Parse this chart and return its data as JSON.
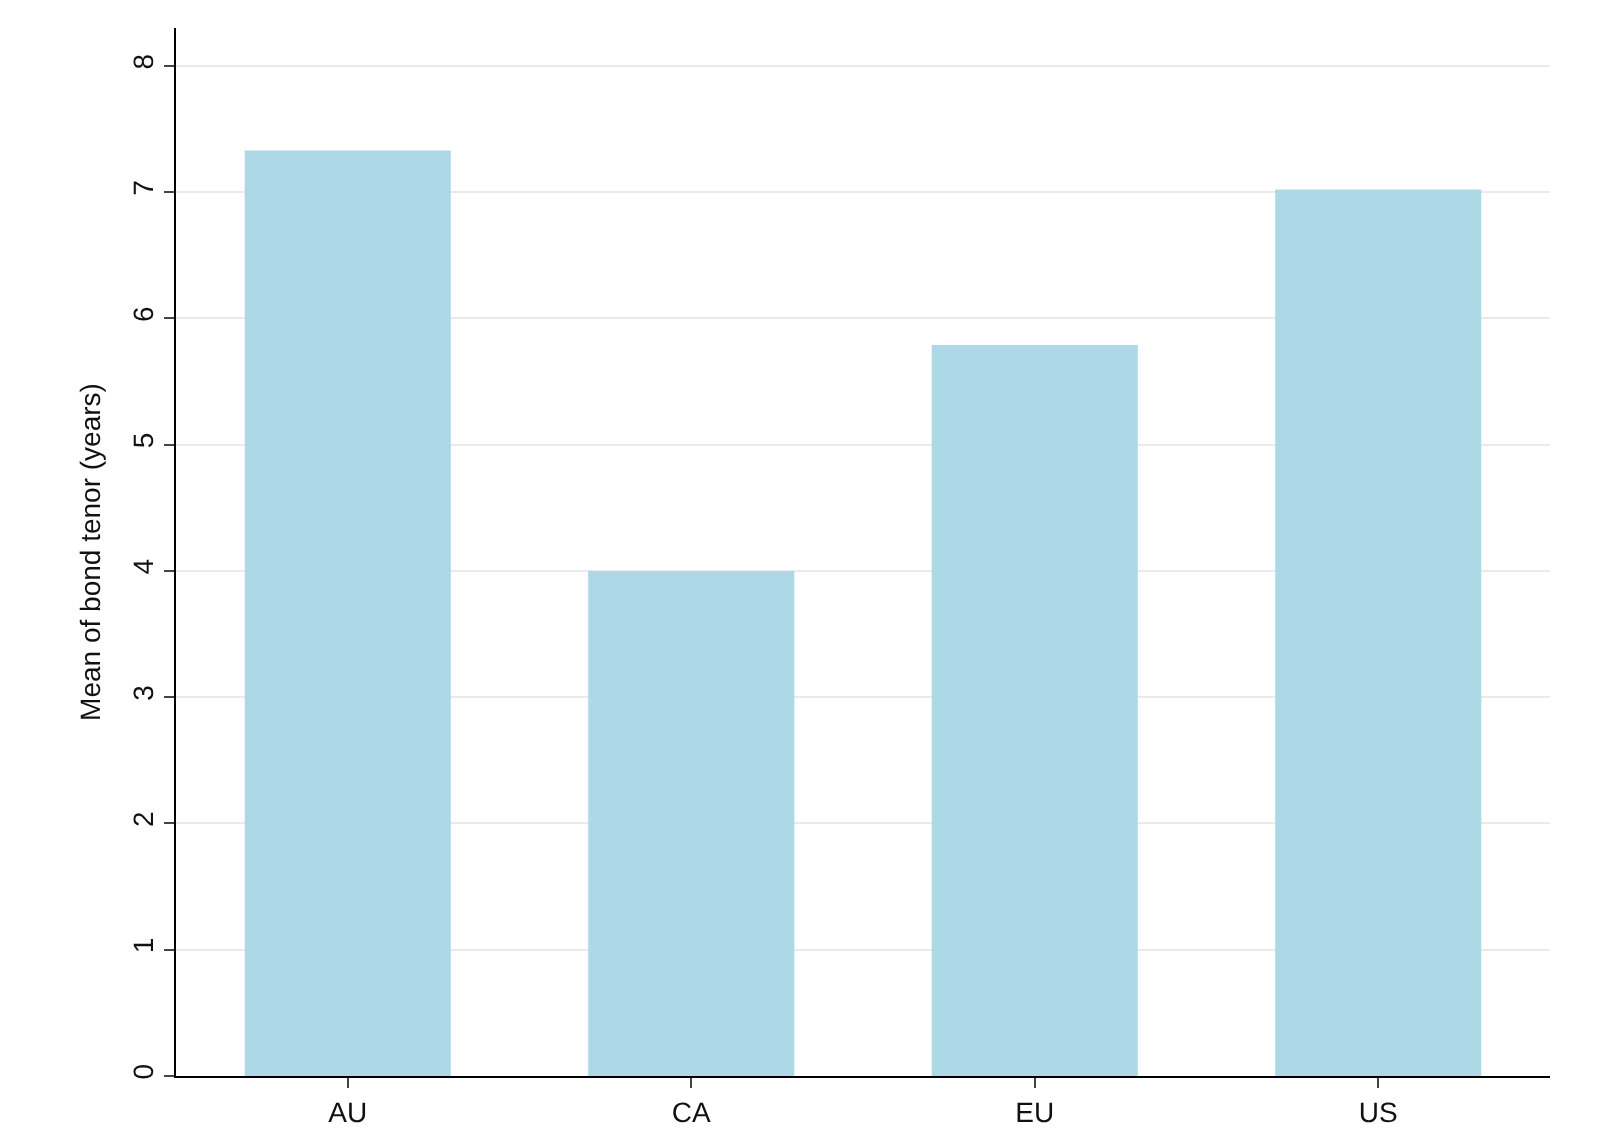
{
  "chart_data": {
    "type": "bar",
    "ylabel": "Mean of bond tenor (years)",
    "categories": [
      "AU",
      "CA",
      "EU",
      "US"
    ],
    "values": [
      7.33,
      4.0,
      5.79,
      7.02
    ],
    "color": "#add8e6",
    "ylim": [
      0,
      8.3
    ],
    "yticks": [
      0,
      1,
      2,
      3,
      4,
      5,
      6,
      7,
      8
    ],
    "grid": "y"
  }
}
